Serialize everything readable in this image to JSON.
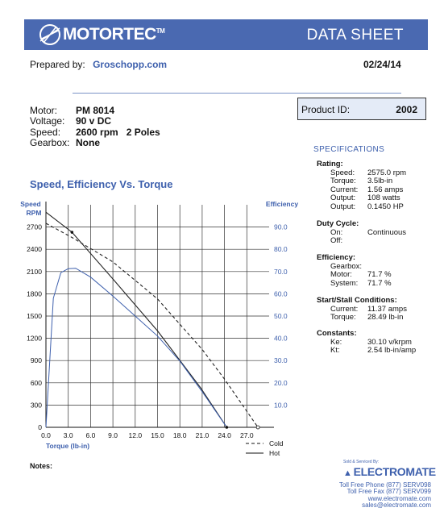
{
  "header": {
    "logo_text": "MOTORTEC",
    "logo_tm": "TM",
    "title": "DATA SHEET",
    "logo_icon": "motor-pinwheel-icon"
  },
  "prepared": {
    "label": "Prepared by:",
    "by": "Groschopp.com",
    "date": "02/24/14"
  },
  "motor": [
    {
      "label": "Motor:",
      "value": "PM  8014",
      "extra": ""
    },
    {
      "label": "Voltage:",
      "value": "90 v DC",
      "extra": ""
    },
    {
      "label": "Speed:",
      "value": "2600 rpm",
      "extra": "2 Poles"
    },
    {
      "label": "Gearbox:",
      "value": "None",
      "extra": ""
    }
  ],
  "product": {
    "label": "Product ID:",
    "value": "2002"
  },
  "specs": {
    "heading": "SPECIFICATIONS",
    "rating": {
      "title": "Rating:",
      "rows": [
        {
          "label": "Speed:",
          "value": "2575.0 rpm"
        },
        {
          "label": "Torque:",
          "value": "3.5lb-in"
        },
        {
          "label": "Current:",
          "value": "1.56 amps"
        },
        {
          "label": "Output:",
          "value": "108 watts"
        },
        {
          "label": "Output:",
          "value": "0.1450 HP"
        }
      ]
    },
    "duty": {
      "title": "Duty Cycle:",
      "rows": [
        {
          "label": "On:",
          "value": "Continuous"
        },
        {
          "label": "Off:",
          "value": ""
        }
      ]
    },
    "efficiency": {
      "title": "Efficiency:",
      "rows": [
        {
          "label": "Gearbox:",
          "value": ""
        },
        {
          "label": "Motor:",
          "value": "71.7 %"
        },
        {
          "label": "System:",
          "value": "71.7 %"
        }
      ]
    },
    "stall": {
      "title": "Start/Stall Conditions:",
      "rows": [
        {
          "label": "Current:",
          "value": "11.37 amps"
        },
        {
          "label": "Torque:",
          "value": "28.49 lb-in"
        }
      ]
    },
    "constants": {
      "title": "Constants:",
      "rows": [
        {
          "label": "Ke:",
          "value": "30.10 v/krpm"
        },
        {
          "label": "Kt:",
          "value": "2.54 lb-in/amp"
        }
      ]
    }
  },
  "chart_data": {
    "type": "line",
    "title": "Speed, Efficiency Vs. Torque",
    "xlabel": "Torque  (lb-in)",
    "ylabel_left": [
      "Speed",
      "RPM"
    ],
    "ylabel_right": "Efficiency",
    "xlim": [
      0,
      30
    ],
    "x_ticks": [
      "0.0",
      "3.0",
      "6.0",
      "9.0",
      "12.0",
      "15.0",
      "18.0",
      "21.0",
      "24.0",
      "27.0"
    ],
    "ylim_left": [
      0,
      3000
    ],
    "y_ticks_left": [
      "0",
      "300",
      "600",
      "900",
      "1200",
      "1500",
      "1800",
      "2100",
      "2400",
      "2700"
    ],
    "ylim_right": [
      0,
      100
    ],
    "y_ticks_right": [
      "10.0",
      "20.0",
      "30.0",
      "40.0",
      "50.0",
      "60.0",
      "70.0",
      "80.0",
      "90.0"
    ],
    "grid": true,
    "legend_position": "bottom-right",
    "legend": [
      {
        "label": "Cold",
        "style": "dashed"
      },
      {
        "label": "Hot",
        "style": "solid"
      }
    ],
    "series": [
      {
        "name": "Cold",
        "axis": "left",
        "color": "#222222",
        "style": "dashed",
        "x": [
          0,
          3.5,
          9,
          15,
          21,
          24,
          28.5
        ],
        "y": [
          2750,
          2560,
          2230,
          1730,
          1050,
          650,
          0
        ]
      },
      {
        "name": "Hot",
        "axis": "left",
        "color": "#222222",
        "style": "solid",
        "x": [
          0,
          3.5,
          9,
          15,
          20.8,
          24.3
        ],
        "y": [
          2900,
          2630,
          2000,
          1300,
          530,
          0
        ]
      },
      {
        "axis": "right",
        "color": "#3e60ad",
        "style": "solid",
        "x": [
          0,
          1,
          2,
          3,
          4,
          6,
          9,
          12,
          15,
          18,
          21,
          24.3
        ],
        "y": [
          0,
          58,
          69.5,
          71.3,
          71.5,
          67.5,
          59,
          50,
          41,
          29.8,
          16,
          0
        ]
      }
    ]
  },
  "notes_label": "Notes:",
  "seller": {
    "sold_by": "Sold & Serviced By:",
    "brand": "ELECTROMATE",
    "brand_icon": "electromate-logo-icon",
    "phone": "Toll Free Phone  (877) SERV098",
    "fax": "Toll Free Fax  (877) SERV099",
    "web": "www.electromate.com",
    "email": "sales@electromate.com"
  }
}
